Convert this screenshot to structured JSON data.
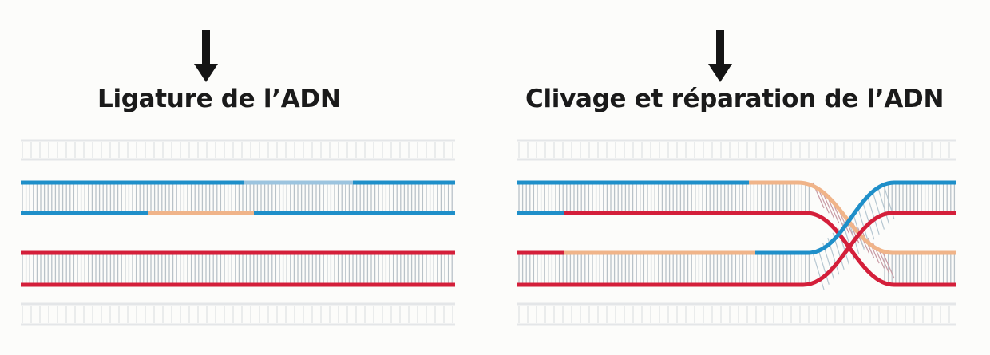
{
  "panels": [
    {
      "title": "Ligature de l’ADN"
    },
    {
      "title": "Clivage et réparation de l’ADN"
    }
  ],
  "colors": {
    "blue_strand": "#1f8fc9",
    "red_strand": "#d41f3a",
    "orange_strand": "#f0b489",
    "light_blue_strand": "#9cc4df",
    "rung": "#b9c2c8",
    "arrow": "#141414",
    "faded": "#e4e6e8"
  }
}
